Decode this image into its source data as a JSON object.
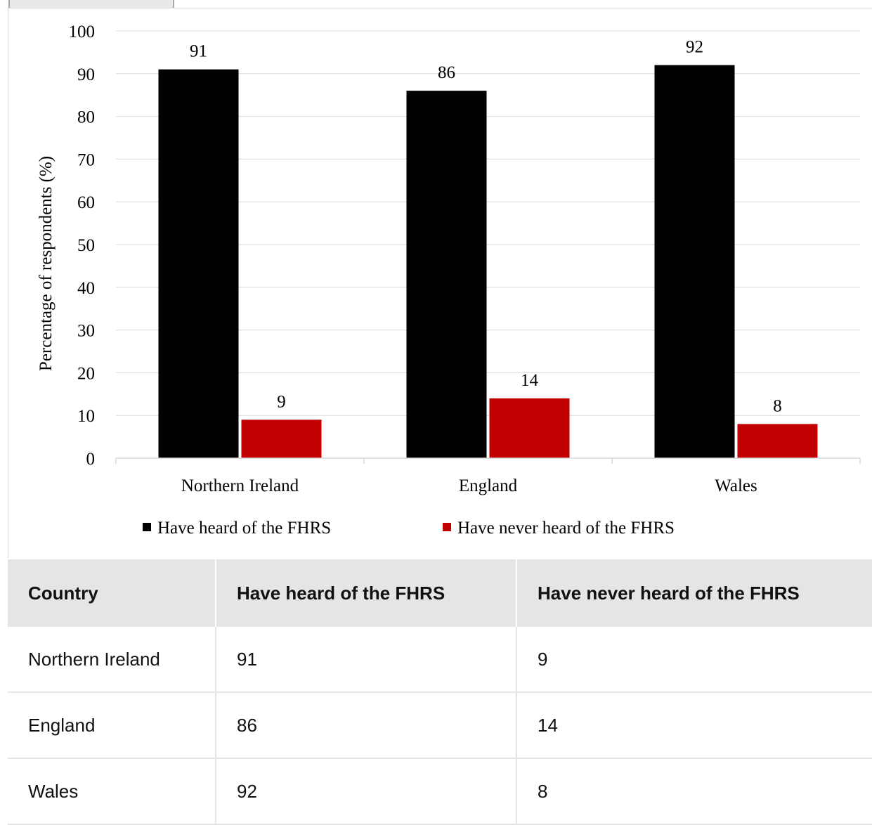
{
  "chart_data": {
    "type": "bar",
    "title": "",
    "xlabel": "",
    "ylabel": "Percentage of respondents (%)",
    "ylim": [
      0,
      100
    ],
    "yticks": [
      "0",
      "10",
      "20",
      "30",
      "40",
      "50",
      "60",
      "70",
      "80",
      "90",
      "100"
    ],
    "categories": [
      "Northern Ireland",
      "England",
      "Wales"
    ],
    "series": [
      {
        "name": "Have heard of the FHRS",
        "values": [
          91,
          86,
          92
        ],
        "color": "#000000"
      },
      {
        "name": "Have never heard of the FHRS",
        "values": [
          9,
          14,
          8
        ],
        "color": "#c00000"
      }
    ],
    "grid": true,
    "legend": "bottom"
  },
  "table": {
    "headers": [
      "Country",
      "Have heard of the FHRS",
      "Have never heard of the FHRS"
    ],
    "rows": [
      [
        "Northern Ireland",
        "91",
        "9"
      ],
      [
        "England",
        "86",
        "14"
      ],
      [
        "Wales",
        "92",
        "8"
      ]
    ]
  }
}
